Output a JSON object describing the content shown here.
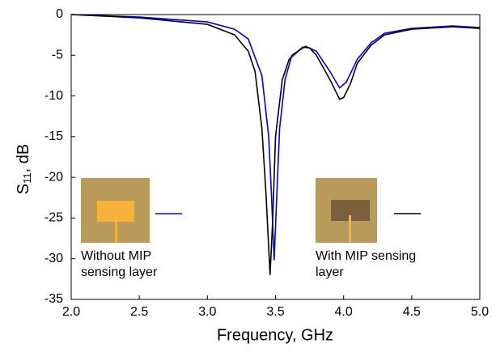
{
  "chart_data": {
    "type": "line",
    "x_label": "Frequency, GHz",
    "y_label": [
      "S",
      "11",
      ", dB"
    ],
    "xlim": [
      2.0,
      5.0
    ],
    "ylim": [
      -35,
      0
    ],
    "xticks": [
      {
        "value": 2.0,
        "label": "2.0"
      },
      {
        "value": 2.5,
        "label": "2.5"
      },
      {
        "value": 3.0,
        "label": "3.0"
      },
      {
        "value": 3.5,
        "label": "3.5"
      },
      {
        "value": 4.0,
        "label": "4.0"
      },
      {
        "value": 4.5,
        "label": "4.5"
      },
      {
        "value": 5.0,
        "label": "5.0"
      }
    ],
    "yticks": [
      0,
      -5,
      -10,
      -15,
      -20,
      -25,
      -30,
      -35
    ],
    "grid": false,
    "series": [
      {
        "name": "Without MIP sensing layer",
        "color": "#0000e0",
        "x": [
          2.0,
          2.5,
          3.0,
          3.2,
          3.3,
          3.4,
          3.45,
          3.47,
          3.49,
          3.51,
          3.53,
          3.57,
          3.62,
          3.72,
          3.8,
          3.9,
          3.97,
          4.02,
          4.1,
          4.2,
          4.3,
          4.5,
          4.7,
          4.8,
          5.0
        ],
        "values": [
          0,
          -0.3,
          -0.9,
          -1.8,
          -3,
          -7.5,
          -15,
          -22,
          -30.2,
          -22,
          -14,
          -8,
          -5,
          -3.9,
          -4.5,
          -7,
          -9,
          -8.3,
          -5.5,
          -3.5,
          -2.3,
          -1.7,
          -1.5,
          -1.4,
          -1.6
        ]
      },
      {
        "name": "With MIP sensing layer",
        "color": "#000000",
        "x": [
          2.0,
          2.5,
          3.0,
          3.2,
          3.3,
          3.35,
          3.4,
          3.43,
          3.46,
          3.48,
          3.5,
          3.55,
          3.6,
          3.7,
          3.75,
          3.8,
          3.9,
          3.97,
          4.0,
          4.05,
          4.1,
          4.2,
          4.3,
          4.5,
          4.7,
          4.8,
          5.0
        ],
        "values": [
          0,
          -0.4,
          -1.2,
          -2.5,
          -4.5,
          -7,
          -14,
          -22,
          -32,
          -25,
          -15,
          -8,
          -5.5,
          -4.0,
          -4.1,
          -5,
          -8,
          -10.4,
          -10.2,
          -8.5,
          -6,
          -3.8,
          -2.5,
          -1.8,
          -1.6,
          -1.5,
          -1.7
        ]
      }
    ]
  }
}
